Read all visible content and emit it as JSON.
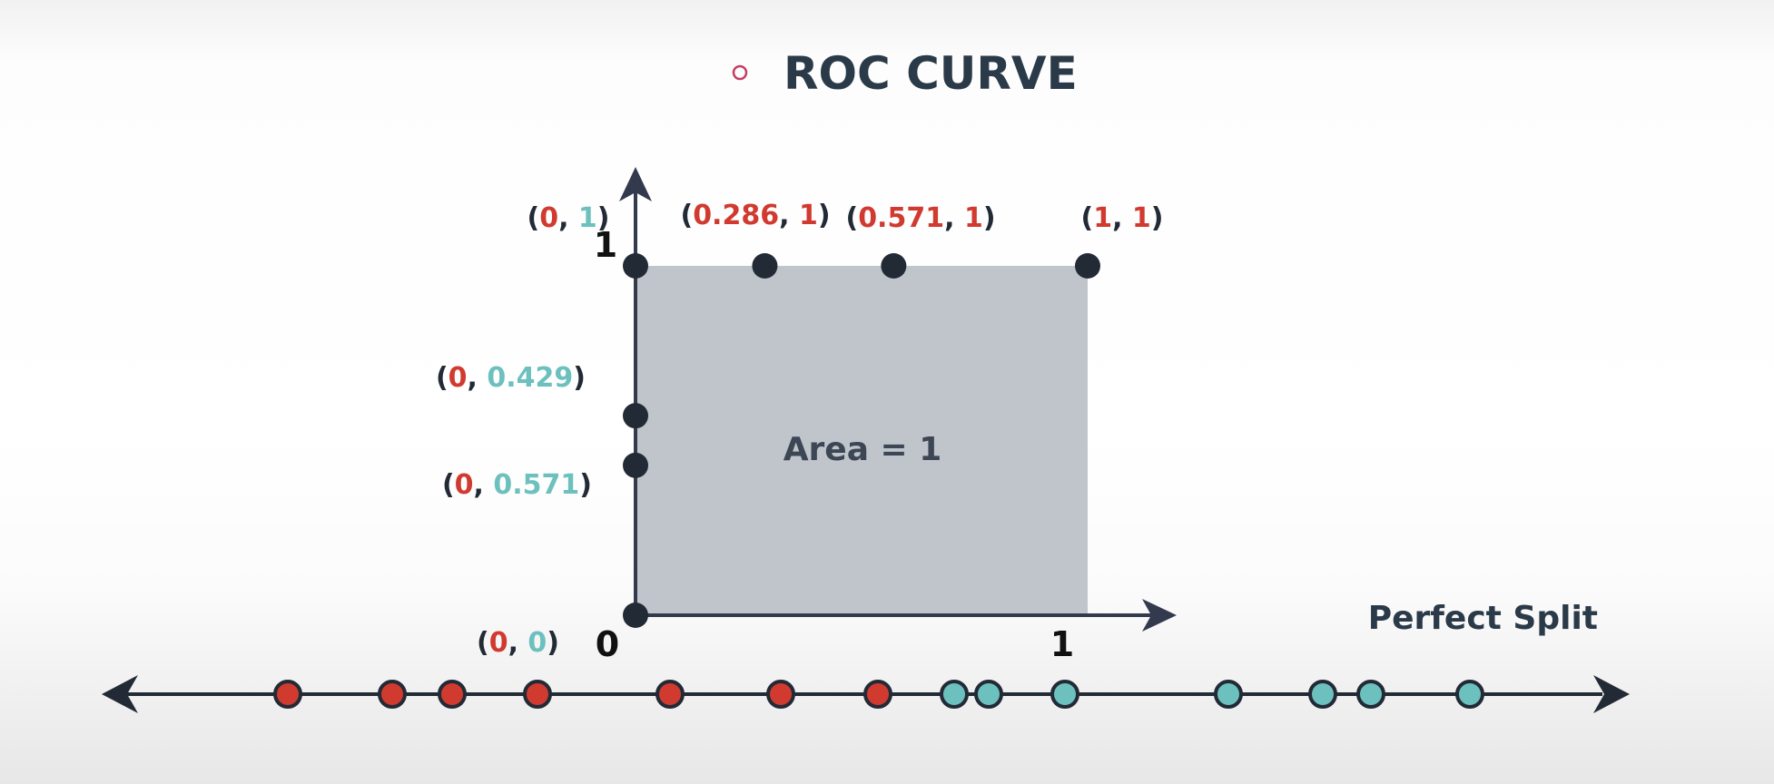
{
  "title": {
    "bullet_icon": "circle-outline-icon",
    "text": "ROC CURVE"
  },
  "colors": {
    "red": "#d03a2f",
    "teal": "#6cc0bd",
    "dark": "#222a36",
    "axis": "#343a4e",
    "area_fill": "#bfc5ca",
    "area_text": "#3d4654",
    "title": "#2b3a48",
    "bullet": "#c43d63"
  },
  "axes": {
    "x_min": 0,
    "x_max": 1,
    "y_min": 0,
    "y_max": 1,
    "x_origin_label": "0",
    "x_end_label": "1",
    "y_origin_label": "0",
    "y_end_label": "1"
  },
  "area_label": "Area = 1",
  "points": [
    {
      "x": 0,
      "y": 1,
      "label": {
        "open": "(",
        "x": "0",
        "sep": ", ",
        "y": "1",
        "close": ")"
      },
      "x_color": "red",
      "y_color": "teal"
    },
    {
      "x": 0.286,
      "y": 1,
      "label": {
        "open": "(",
        "x": "0.286",
        "sep": ", ",
        "y": "1",
        "close": ")"
      },
      "x_color": "red",
      "y_color": "red"
    },
    {
      "x": 0.571,
      "y": 1,
      "label": {
        "open": "(",
        "x": "0.571",
        "sep": ", ",
        "y": "1",
        "close": ")"
      },
      "x_color": "red",
      "y_color": "red"
    },
    {
      "x": 1,
      "y": 1,
      "label": {
        "open": "(",
        "x": "1",
        "sep": ", ",
        "y": "1",
        "close": ")"
      },
      "x_color": "red",
      "y_color": "red"
    },
    {
      "x": 0,
      "y": 0.429,
      "label": {
        "open": "(",
        "x": "0",
        "sep": ", ",
        "y": "0.429",
        "close": ")"
      },
      "x_color": "red",
      "y_color": "teal"
    },
    {
      "x": 0,
      "y": 0.571,
      "label": {
        "open": "(",
        "x": "0",
        "sep": ", ",
        "y": "0.571",
        "close": ")"
      },
      "x_color": "red",
      "y_color": "teal"
    },
    {
      "x": 0,
      "y": 0,
      "label": {
        "open": "(",
        "x": "0",
        "sep": ", ",
        "y": "0",
        "close": ")"
      },
      "x_color": "red",
      "y_color": "teal"
    }
  ],
  "number_line": {
    "label": "Perfect Split",
    "dots": [
      "red",
      "red",
      "red",
      "red",
      "red",
      "red",
      "red",
      "teal",
      "teal",
      "teal",
      "teal",
      "teal",
      "teal",
      "teal"
    ]
  }
}
